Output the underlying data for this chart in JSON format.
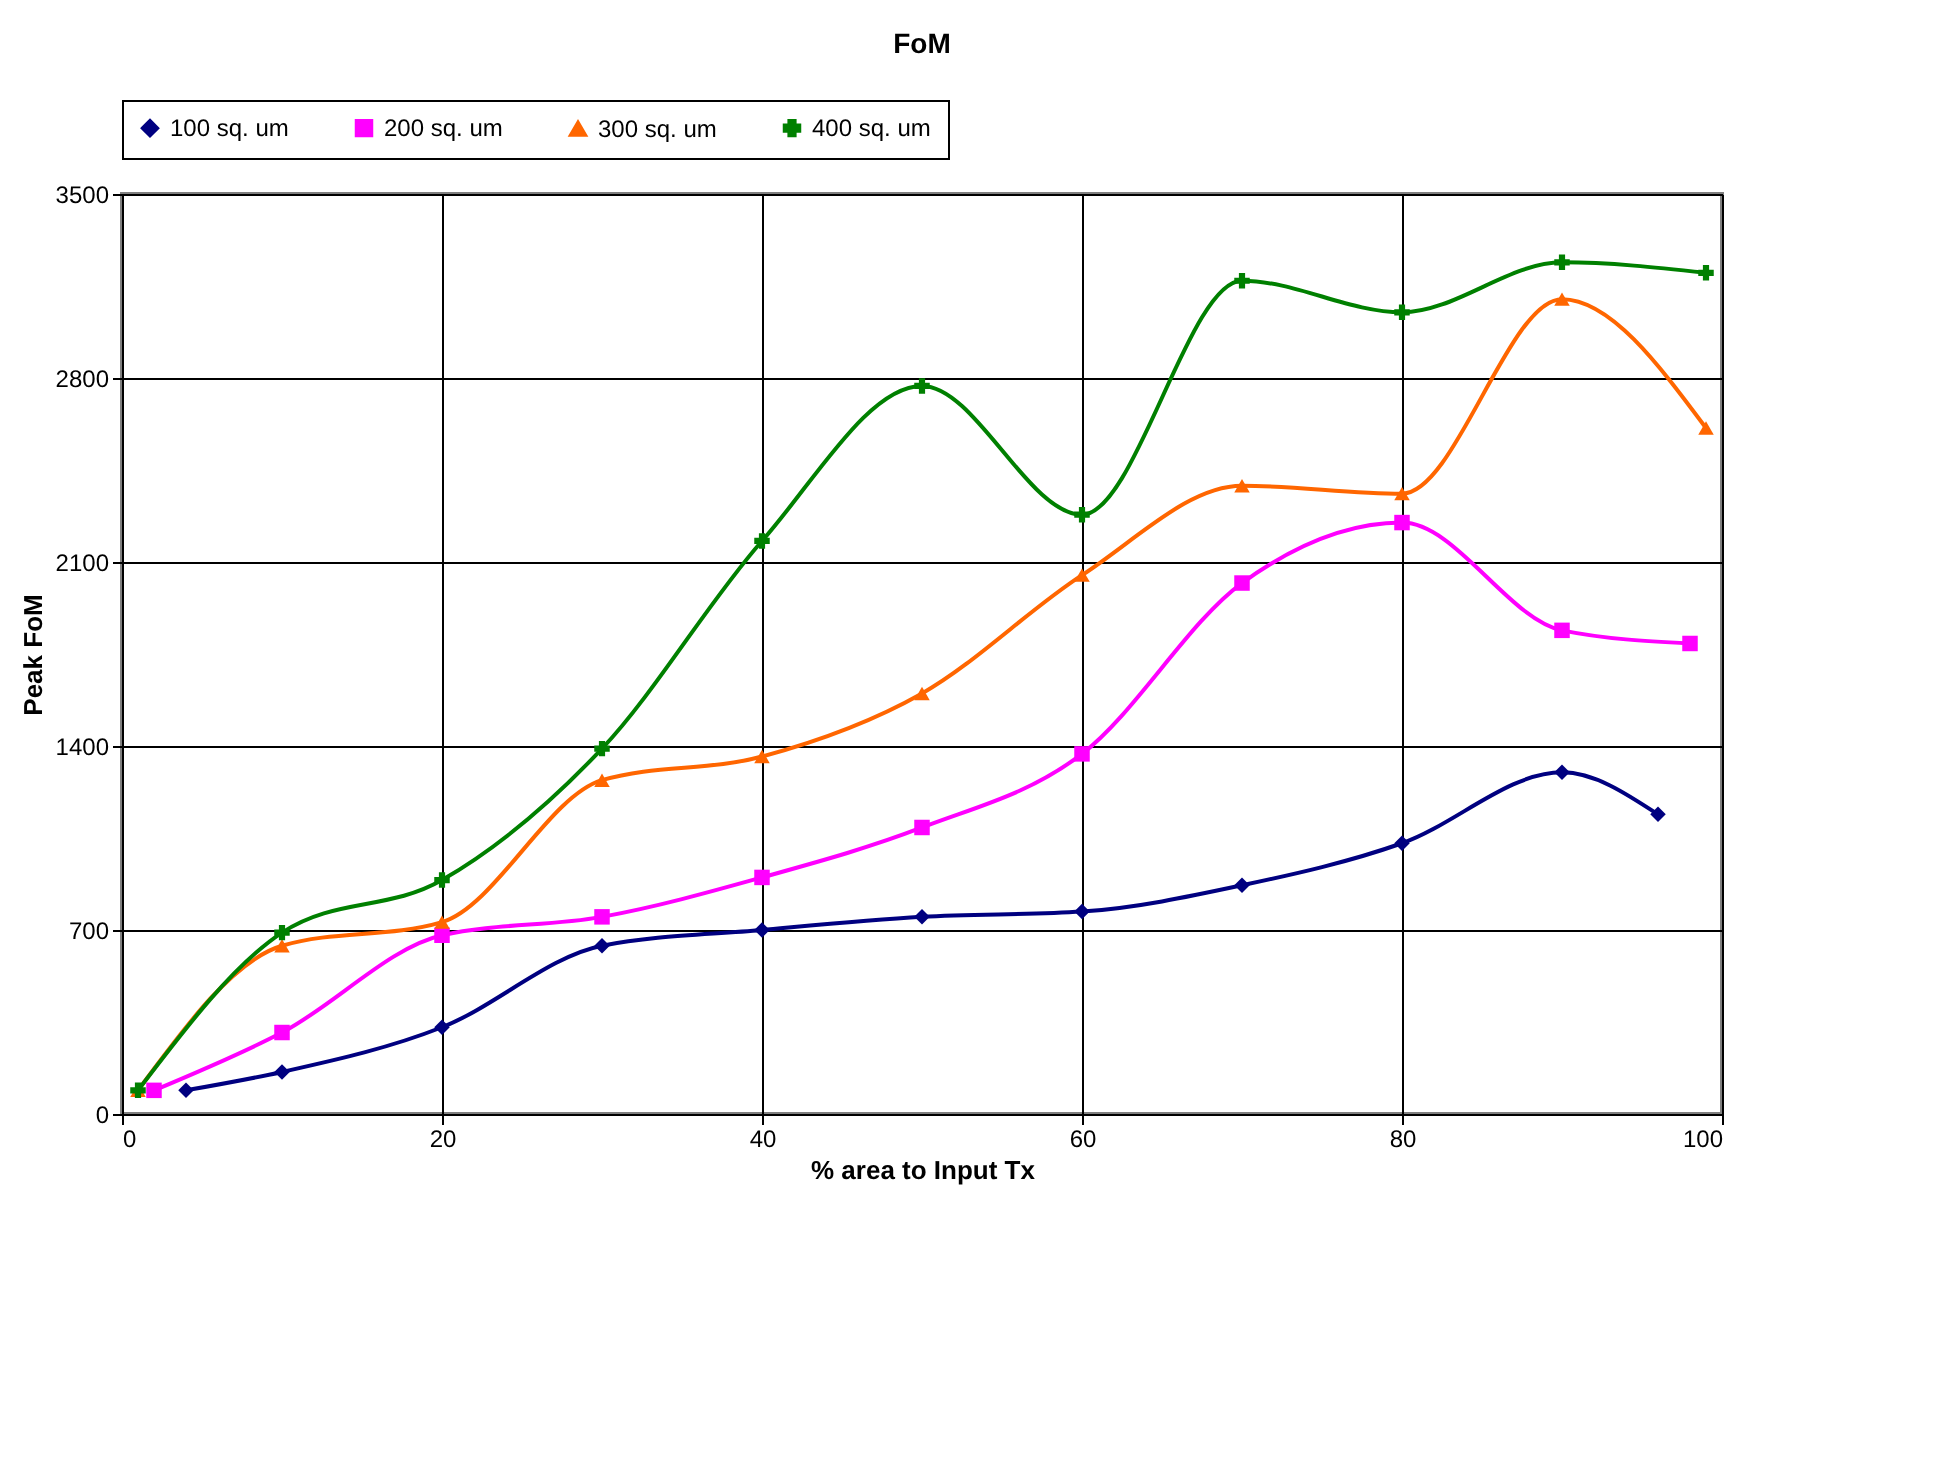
{
  "chart_data": {
    "type": "line",
    "title": "FoM",
    "xlabel": "% area to Input Tx",
    "ylabel": "Peak FoM",
    "xlim": [
      0,
      100
    ],
    "xticks": [
      0,
      20,
      40,
      60,
      80,
      100
    ],
    "ylim": [
      0,
      3500
    ],
    "yticks": [
      0,
      700,
      1400,
      2100,
      2800,
      3500
    ],
    "grid": true,
    "legend": "top",
    "line_style": "solid",
    "series": [
      {
        "name": "100 sq. um",
        "color": "#000080",
        "marker": "diamond",
        "x": [
          4,
          10,
          20,
          30,
          40,
          50,
          60,
          70,
          80,
          90,
          96
        ],
        "values": [
          90,
          160,
          330,
          640,
          700,
          750,
          770,
          870,
          1030,
          1300,
          1140
        ]
      },
      {
        "name": "200 sq. um",
        "color": "#ff00ff",
        "marker": "square",
        "x": [
          2,
          10,
          20,
          30,
          40,
          50,
          60,
          70,
          80,
          90,
          98
        ],
        "values": [
          90,
          310,
          680,
          750,
          900,
          1090,
          1370,
          2020,
          2250,
          1840,
          1790
        ]
      },
      {
        "name": "300 sq. um",
        "color": "#ff6600",
        "marker": "triangle",
        "x": [
          1,
          10,
          20,
          30,
          40,
          50,
          60,
          70,
          80,
          90,
          99
        ],
        "values": [
          90,
          640,
          730,
          1270,
          1360,
          1600,
          2050,
          2390,
          2360,
          3100,
          2610
        ]
      },
      {
        "name": "400 sq. um",
        "color": "#008000",
        "marker": "cross",
        "x": [
          1,
          10,
          20,
          30,
          40,
          50,
          60,
          70,
          80,
          90,
          99
        ],
        "values": [
          90,
          690,
          890,
          1390,
          2180,
          2770,
          2280,
          3170,
          3050,
          3240,
          3200
        ]
      }
    ]
  }
}
